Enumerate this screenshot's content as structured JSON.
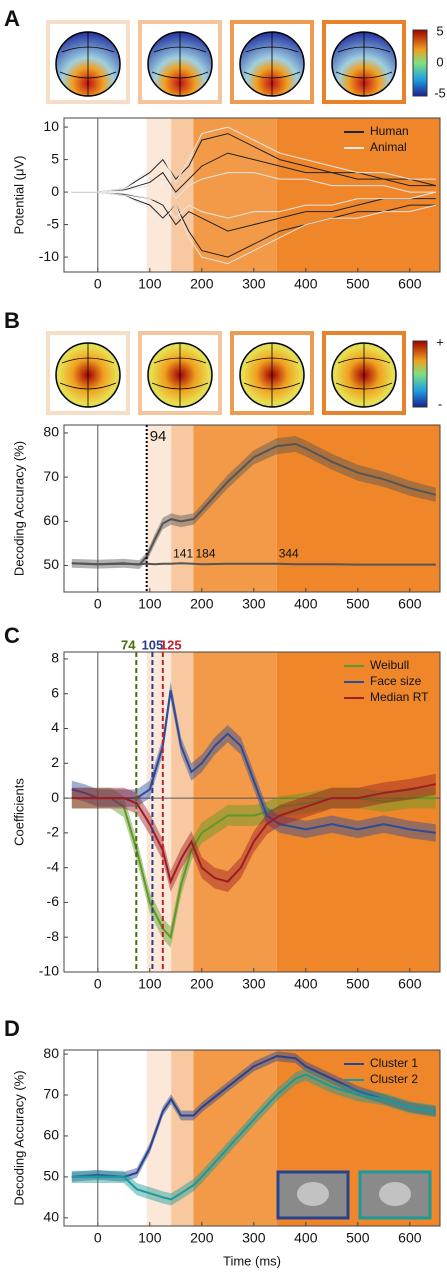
{
  "chart_data": [
    {
      "type": "line",
      "panel": "A",
      "ylabel": "Potential (μV)",
      "xlim": [
        -65,
        658
      ],
      "xticks": [
        0,
        100,
        200,
        300,
        400,
        500,
        600
      ],
      "ylim": [
        -12.3,
        11.4
      ],
      "yticks": [
        -10,
        -5,
        0,
        5,
        10
      ],
      "vline": 0,
      "shading_edges": [
        94,
        141,
        184,
        344
      ],
      "shading_colors": [
        "#fce8d8",
        "#f8c9a0",
        "#f39a48",
        "#ef872a"
      ],
      "colorbar_labels": [
        5,
        0,
        -5
      ],
      "legend": "upper right",
      "x": [
        -50,
        0,
        50,
        100,
        125,
        150,
        175,
        200,
        250,
        300,
        350,
        400,
        450,
        500,
        550,
        600,
        650
      ],
      "series": [
        {
          "name": "Human",
          "color": "#222222",
          "lines": [
            [
              0,
              0,
              0.5,
              3,
              5,
              2,
              4,
              8,
              9,
              7,
              5,
              4,
              3,
              3,
              2,
              2,
              1
            ],
            [
              0,
              0,
              -0.5,
              -2,
              -4,
              -2,
              -6,
              -9,
              -10,
              -8,
              -6,
              -5,
              -4,
              -3,
              -3,
              -2,
              -2
            ],
            [
              0,
              0,
              0.3,
              1.5,
              3,
              0,
              2,
              4,
              6,
              5,
              4,
              3,
              3,
              2,
              2,
              1,
              1
            ],
            [
              0,
              0,
              -0.3,
              -1,
              -2,
              -5,
              -3,
              -4,
              -6,
              -5,
              -4,
              -3,
              -3,
              -2,
              -1,
              -1,
              -1
            ]
          ]
        },
        {
          "name": "Animal",
          "color": "#e6e6e6",
          "lines": [
            [
              0,
              0,
              0.5,
              3.5,
              5.5,
              1.5,
              5,
              9,
              10,
              8,
              6,
              5,
              4,
              3,
              3,
              2,
              2
            ],
            [
              0,
              0,
              -0.5,
              -2.5,
              -4.5,
              -2,
              -7,
              -10,
              -11,
              -9,
              -7,
              -5,
              -4,
              -4,
              -3,
              -3,
              -2
            ],
            [
              0,
              0,
              0.2,
              1,
              2,
              -1,
              1,
              2,
              3,
              3,
              2,
              2,
              1,
              1,
              1,
              0,
              0
            ],
            [
              0,
              0,
              -0.2,
              -1,
              -1.5,
              -4,
              -2,
              -3,
              -4,
              -3,
              -3,
              -2,
              -2,
              -1,
              -1,
              -1,
              0
            ]
          ]
        }
      ]
    },
    {
      "type": "line",
      "panel": "B",
      "ylabel": "Decoding Accuracy (%)",
      "xlim": [
        -65,
        658
      ],
      "xticks": [
        0,
        100,
        200,
        300,
        400,
        500,
        600
      ],
      "ylim": [
        44,
        81.8
      ],
      "yticks": [
        50,
        60,
        70,
        80
      ],
      "vline": 0,
      "shading_edges": [
        94,
        141,
        184,
        344
      ],
      "shading_colors": [
        "#fce8d8",
        "#f8c9a0",
        "#f39a48",
        "#ef872a"
      ],
      "edge_labels": true,
      "colorbar_labels": [
        "+",
        "-"
      ],
      "markers": {
        "values": [
          94
        ],
        "colors": [
          "#000000"
        ],
        "dash": "2,2"
      },
      "x": [
        -50,
        0,
        50,
        80,
        94,
        110,
        125,
        141,
        160,
        184,
        200,
        250,
        300,
        344,
        380,
        400,
        450,
        500,
        550,
        600,
        650
      ],
      "series": [
        {
          "color": "#555555",
          "values": [
            50.5,
            50.3,
            50.5,
            50.2,
            52,
            56,
            59.5,
            60.5,
            60,
            60.5,
            62.5,
            69,
            74.5,
            77,
            77.5,
            76.5,
            73.5,
            71,
            69.5,
            67.5,
            66
          ],
          "error": [
            1,
            1,
            1,
            1,
            1,
            1.2,
            1.3,
            1.3,
            1.3,
            1.3,
            1.3,
            1.5,
            1.6,
            1.8,
            1.8,
            1.8,
            1.8,
            1.8,
            1.7,
            1.7,
            1.6
          ]
        },
        {
          "color": "#555555",
          "values": [
            50.5,
            50.3,
            50.4,
            50.3,
            50.4,
            50.3,
            50.4,
            50.4,
            50.5,
            50.4,
            50.3,
            50.4,
            50.4,
            50.4,
            50.3,
            50.3,
            50.3,
            50.2,
            50.2,
            50.2,
            50.2
          ]
        }
      ]
    },
    {
      "type": "line",
      "panel": "C",
      "ylabel": "Coefficients",
      "xlim": [
        -65,
        658
      ],
      "xticks": [
        0,
        100,
        200,
        300,
        400,
        500,
        600
      ],
      "ylim": [
        -10,
        8.4
      ],
      "yticks": [
        -10,
        -8,
        -6,
        -4,
        -2,
        0,
        2,
        4,
        6,
        8
      ],
      "vline": 0,
      "hline": 0,
      "shading_edges": [
        94,
        141,
        184,
        344
      ],
      "shading_colors": [
        "#fce8d8",
        "#f8c9a0",
        "#f39a48",
        "#ef872a"
      ],
      "legend": "upper right",
      "markers": {
        "values": [
          74,
          105,
          125
        ],
        "colors": [
          "#4a6a10",
          "#2d3b8a",
          "#c0202a"
        ],
        "dash": "5,3"
      },
      "x": [
        -50,
        -25,
        0,
        25,
        50,
        75,
        100,
        125,
        140,
        160,
        180,
        200,
        225,
        250,
        275,
        300,
        325,
        350,
        400,
        450,
        500,
        550,
        600,
        650
      ],
      "series": [
        {
          "name": "Weibull",
          "color": "#5e9a28",
          "values": [
            0,
            0,
            0,
            0,
            -0.5,
            -3,
            -6,
            -7.5,
            -8,
            -5,
            -3,
            -2,
            -1.5,
            -1,
            -1,
            -1,
            -0.8,
            -0.5,
            -0.3,
            0,
            0,
            -0.2,
            0,
            0
          ],
          "error": [
            0.6,
            0.6,
            0.6,
            0.6,
            0.6,
            0.6,
            0.6,
            0.6,
            0.6,
            0.6,
            0.6,
            0.6,
            0.6,
            0.6,
            0.6,
            0.6,
            0.6,
            0.6,
            0.6,
            0.6,
            0.6,
            0.6,
            0.6,
            0.6
          ]
        },
        {
          "name": "Face size",
          "color": "#2d4b9a",
          "values": [
            0.5,
            0.3,
            0,
            0,
            0,
            0,
            0.5,
            3,
            6.2,
            3,
            1.5,
            2,
            3,
            3.7,
            3,
            1,
            -1,
            -1.5,
            -1.8,
            -1.5,
            -1.8,
            -1.5,
            -1.8,
            -2
          ],
          "error": [
            0.5,
            0.5,
            0.5,
            0.5,
            0.5,
            0.5,
            0.5,
            0.5,
            0.5,
            0.5,
            0.5,
            0.5,
            0.5,
            0.5,
            0.5,
            0.5,
            0.5,
            0.5,
            0.5,
            0.5,
            0.5,
            0.5,
            0.5,
            0.5
          ]
        },
        {
          "name": "Median RT",
          "color": "#9e1c24",
          "values": [
            0,
            0,
            0,
            0,
            0,
            -0.3,
            -1.5,
            -3,
            -4.8,
            -3.5,
            -2.5,
            -4,
            -4.6,
            -4.8,
            -4,
            -2.5,
            -1.5,
            -1,
            -0.5,
            0,
            0,
            0.3,
            0.5,
            0.8
          ],
          "error": [
            0.6,
            0.6,
            0.6,
            0.6,
            0.6,
            0.6,
            0.6,
            0.6,
            0.6,
            0.6,
            0.6,
            0.6,
            0.6,
            0.6,
            0.6,
            0.6,
            0.6,
            0.6,
            0.6,
            0.6,
            0.6,
            0.6,
            0.6,
            0.6
          ]
        }
      ]
    },
    {
      "type": "line",
      "panel": "D",
      "ylabel": "Decoding Accuracy (%)",
      "xlabel": "Time (ms)",
      "xlim": [
        -65,
        658
      ],
      "xticks": [
        0,
        100,
        200,
        300,
        400,
        500,
        600
      ],
      "ylim": [
        38,
        81
      ],
      "yticks": [
        40,
        50,
        60,
        70,
        80
      ],
      "vline": 0,
      "shading_edges": [
        94,
        141,
        184,
        344
      ],
      "shading_colors": [
        "#fce8d8",
        "#f8c9a0",
        "#f39a48",
        "#ef872a"
      ],
      "legend": "upper right",
      "x": [
        -50,
        0,
        50,
        75,
        100,
        125,
        141,
        160,
        184,
        200,
        250,
        300,
        344,
        380,
        400,
        450,
        500,
        550,
        600,
        650
      ],
      "series": [
        {
          "name": "Cluster 1",
          "color": "#27428f",
          "values": [
            50,
            50.5,
            50,
            51,
            57,
            66,
            69,
            65,
            65,
            67,
            72,
            77,
            79.5,
            79,
            77,
            74,
            71,
            69,
            67,
            66
          ],
          "error": [
            1.2,
            1.2,
            1.2,
            1.2,
            1.2,
            1.2,
            1.2,
            1.2,
            1.2,
            1.2,
            1.2,
            1.2,
            1.2,
            1.2,
            1.2,
            1.2,
            1.2,
            1.2,
            1.2,
            1.2
          ]
        },
        {
          "name": "Cluster 2",
          "color": "#1a9a9a",
          "values": [
            50,
            50,
            50,
            47,
            46,
            45,
            44.5,
            46,
            48,
            50,
            57,
            64,
            70,
            74,
            75,
            72,
            70,
            69,
            67,
            66
          ],
          "error": [
            1.5,
            1.5,
            1.5,
            1.5,
            1.5,
            1.5,
            1.5,
            1.5,
            1.5,
            1.5,
            1.5,
            1.5,
            1.5,
            1.5,
            1.5,
            1.5,
            1.5,
            1.5,
            1.5,
            1.5
          ]
        }
      ]
    }
  ]
}
